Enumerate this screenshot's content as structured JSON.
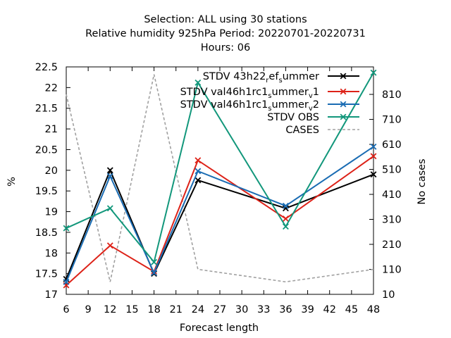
{
  "chart_data": {
    "type": "line",
    "title_lines": [
      "Selection: ALL using    30 stations",
      "Relative humidity 925hPa   Period: 20220701-20220731",
      "Hours:  06"
    ],
    "xlabel": "Forecast length",
    "ylabel": "%",
    "y2label": "No cases",
    "xlim": [
      6,
      48
    ],
    "ylim": [
      17,
      22.5
    ],
    "y2lim": [
      10,
      920
    ],
    "x_ticks": [
      6,
      9,
      12,
      15,
      18,
      21,
      24,
      27,
      30,
      33,
      36,
      39,
      42,
      45,
      48
    ],
    "y_ticks": [
      17,
      17.5,
      18,
      18.5,
      19,
      19.5,
      20,
      20.5,
      21,
      21.5,
      22,
      22.5
    ],
    "y2_ticks": [
      10,
      110,
      210,
      310,
      410,
      510,
      610,
      710,
      810
    ],
    "x": [
      6,
      12,
      18,
      24,
      36,
      48
    ],
    "series": [
      {
        "name": "STDV 43h22_ref_summer",
        "legend_parts": [
          "STDV 43h22",
          "r",
          "ef",
          "s",
          "ummer"
        ],
        "color": "#000000",
        "values": [
          17.37,
          20.0,
          17.5,
          19.76,
          19.08,
          19.9
        ]
      },
      {
        "name": "STDV val46h1rc1_summer_v1",
        "legend_parts": [
          "STDV val46h1rc1",
          "s",
          "ummer",
          "v",
          "1"
        ],
        "color": "#dd2218",
        "values": [
          17.22,
          18.18,
          17.55,
          20.24,
          18.83,
          20.34
        ]
      },
      {
        "name": "STDV val46h1rc1_summer_v2",
        "legend_parts": [
          "STDV val46h1rc1",
          "s",
          "ummer",
          "v",
          "2"
        ],
        "color": "#1a6cb3",
        "values": [
          17.3,
          19.86,
          17.52,
          19.98,
          19.14,
          20.57
        ]
      },
      {
        "name": "STDV OBS",
        "legend_parts": [
          "STDV OBS"
        ],
        "color": "#12977b",
        "values": [
          18.6,
          19.08,
          17.78,
          22.12,
          18.64,
          22.36
        ]
      }
    ],
    "cases": {
      "name": "CASES",
      "color": "#a0a0a0",
      "axis": "y2",
      "values": [
        810,
        60,
        890,
        110,
        60,
        110
      ]
    },
    "legend_position": "top-right",
    "grid": false
  }
}
